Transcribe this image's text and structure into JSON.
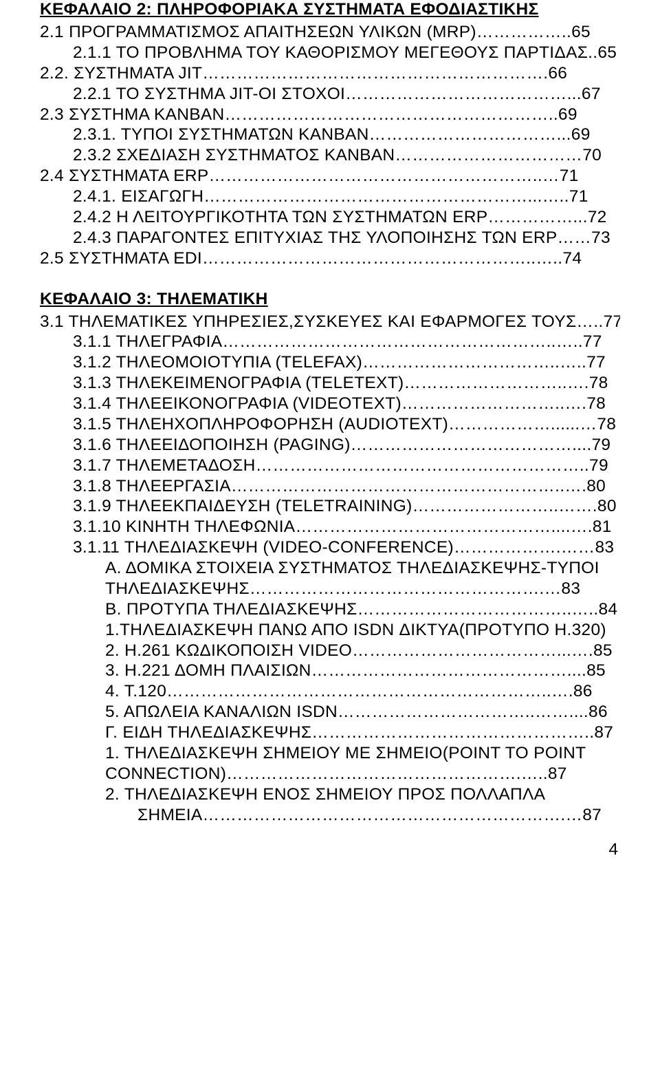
{
  "chapter2": {
    "heading": "ΚΕΦΑΛΑΙΟ 2: ΠΛΗΡΟΦΟΡΙΑΚΑ ΣΥΣΤΗΜΑΤΑ ΕΦΟΔΙΑΣΤΙΚΗΣ",
    "items": [
      {
        "text": "2.1 ΠΡΟΓΡΑΜΜΑΤΙΣΜΟΣ ΑΠΑΙΤΗΣΕΩΝ ΥΛΙΚΩΝ (MRP)……………..65",
        "indent": 0
      },
      {
        "text": "2.1.1 ΤΟ ΠΡΟΒΛΗΜΑ ΤΟΥ ΚΑΘΟΡΙΣΜΟΥ ΜΕΓΕΘΟΥΣ ΠΑΡΤΙΔΑΣ..65",
        "indent": 1
      },
      {
        "text": "2.2. ΣΥΣΤΗΜΑΤΑ JIT…………………………………………………….66",
        "indent": 0
      },
      {
        "text": "2.2.1 ΤΟ ΣΥΣΤΗΜΑ JIT-ΟΙ ΣΤΟΧΟΙ…………………………………...67",
        "indent": 1
      },
      {
        "text": "2.3 ΣΥΣΤΗΜΑ ΚΑΝΒΑΝ…………………………………………………..69",
        "indent": 0
      },
      {
        "text": "2.3.1. ΤΥΠΟΙ ΣΥΣΤΗΜΑΤΩΝ ΚΑΝΒΑΝ……………………………...69",
        "indent": 1
      },
      {
        "text": "2.3.2 ΣΧΕΔΙΑΣΗ ΣΥΣΤΗΜΑΤΟΣ ΚΑΝΒΑΝ……………………………70",
        "indent": 1
      },
      {
        "text": "2.4 ΣΥΣΤΗΜΑΤΑ ERP…………………………………………………..…71",
        "indent": 0
      },
      {
        "text": "2.4.1. ΕΙΣΑΓΩΓΗ…………………………………………………...…..71",
        "indent": 1
      },
      {
        "text": "2.4.2 Η ΛΕΙΤΟΥΡΓΙΚΟΤΗΤΑ ΤΩΝ ΣΥΣΤΗΜΑΤΩΝ ERP……………...72",
        "indent": 1
      },
      {
        "text": "2.4.3 ΠΑΡΑΓΟΝΤΕΣ ΕΠΙΤΥΧΙΑΣ ΤΗΣ ΥΛΟΠΟΙΗΣΗΣ ΤΩΝ ERP……73",
        "indent": 1
      },
      {
        "text": "2.5 ΣΥΣΤΗΜΑΤΑ EDI…………………………………………………..…..74",
        "indent": 0
      }
    ]
  },
  "chapter3": {
    "heading": "ΚΕΦΑΛΑΙΟ 3: ΤΗΛΕΜΑΤΙΚΗ",
    "items": [
      {
        "text": "3.1 ΤΗΛΕΜΑΤΙΚΕΣ ΥΠΗΡΕΣΙΕΣ,ΣΥΣΚΕΥΕΣ ΚΑΙ ΕΦΑΡΜΟΓΕΣ ΤΟΥΣ…..77",
        "indent": 0
      },
      {
        "text": "3.1.1 ΤΗΛΕΓΡΑΦΙΑ…………………………………………………..…..77",
        "indent": 1
      },
      {
        "text": "3.1.2 ΤΗΛΕΟΜΟΙΟΤΥΠΙΑ (TELEFAX)……………………………..…..77",
        "indent": 1
      },
      {
        "text": "3.1.3 ΤΗΛΕΚΕΙΜΕΝΟΓΡΑΦΙΑ (TELETEXT)………………………..….78",
        "indent": 1
      },
      {
        "text": "3.1.4 ΤΗΛΕΕΙΚΟΝΟΓΡΑΦΙΑ (VIDEOTEXT)………………………..….78",
        "indent": 1
      },
      {
        "text": "3.1.5 ΤΗΛΕΗΧΟΠΛΗΡΟΦΟΡΗΣΗ (AUDIOTEXT)………………......…78",
        "indent": 1
      },
      {
        "text": "3.1.6 ΤΗΛΕΕΙΔΟΠΟΙΗΣΗ (PAGING)…………………………………....79",
        "indent": 1
      },
      {
        "text": "3.1.7 ΤΗΛΕΜΕΤΑΔΟΣΗ…………………………………………………..79",
        "indent": 1
      },
      {
        "text": "3.1.8 ΤΗΛΕΕΡΓΑΣΙΑ…………………………………………………..….80",
        "indent": 1
      },
      {
        "text": "3.1.9 ΤΗΛΕΕΚΠΑΙΔΕΥΣΗ (TELETRAINING)……………………..…….80",
        "indent": 1
      },
      {
        "text": "3.1.10 ΚΙΝΗΤΗ ΤΗΛΕΦΩΝΙΑ………………………………………....….81",
        "indent": 1
      },
      {
        "text": "3.1.11 ΤΗΛΕΔΙΑΣΚΕΨΗ (VIDEO-CONFERENCE)……………….……83",
        "indent": 1
      },
      {
        "text": "Α.  ΔΟΜΙΚΑ ΣΤΟΙΧΕΙΑ ΣΥΣΤΗΜΑΤΟΣ ΤΗΛΕΔΙΑΣΚΕΨΗΣ-ΤΥΠΟΙ",
        "indent": 2
      },
      {
        "text": "ΤΗΛΕΔΙΑΣΚΕΨΗΣ…………………………………………….…83",
        "indent": 2,
        "continuation": true
      },
      {
        "text": "Β. ΠΡΟΤΥΠΑ ΤΗΛΕΔΙΑΣΚΕΨΗΣ………………………………..…..84",
        "indent": 2
      },
      {
        "text": "1.ΤΗΛΕΔΙΑΣΚΕΨΗ ΠΑΝΩ ΑΠΟ ISDN ΔΙΚΤΥΑ(ΠΡΟΤΥΠΟ Η.320)",
        "indent": 2,
        "shiftb": true
      },
      {
        "text": "2. Η.261 ΚΩΔΙΚΟΠΟΙΣΗ VIDEO………………………………...….85",
        "indent": 2,
        "shiftb": true
      },
      {
        "text": "3. Η.221 ΔΟΜΗ ΠΛΑΙΣΙΩΝ………………………………………....85",
        "indent": 2,
        "shiftb": true
      },
      {
        "text": "4. Τ.120…………………………………………………………..….86",
        "indent": 2,
        "shiftb": true
      },
      {
        "text": "5. ΑΠΩΛΕΙΑ ΚΑΝΑΛΙΩΝ ISDN……………………………..……....86",
        "indent": 2,
        "shiftb": true
      },
      {
        "text": "Γ. ΕΙΔΗ ΤΗΛΕΔΙΑΣΚΕΨΗΣ…………………………………………..87",
        "indent": 2
      },
      {
        "text": "1.  ΤΗΛΕΔΙΑΣΚΕΨΗ ΣΗΜΕΙΟΥ ΜΕ ΣΗΜΕΙΟ(POINT TO POINT",
        "indent": 2,
        "shiftb": true
      },
      {
        "text": "CONNECTION)…………………………………………….…..87",
        "indent": 2,
        "shiftb": true
      },
      {
        "text": "2.  ΤΗΛΕΔΙΑΣΚΕΨΗ ΕΝΟΣ ΣΗΜΕΙΟΥ ΠΡΟΣ ΠΟΛΛΑΠΛΑ",
        "indent": 2,
        "shiftb": true
      },
      {
        "text": "ΣΗΜΕΙΑ……………………………………………………….…87",
        "indent": 3,
        "continuation2": true
      }
    ]
  },
  "pageNumber": "4"
}
